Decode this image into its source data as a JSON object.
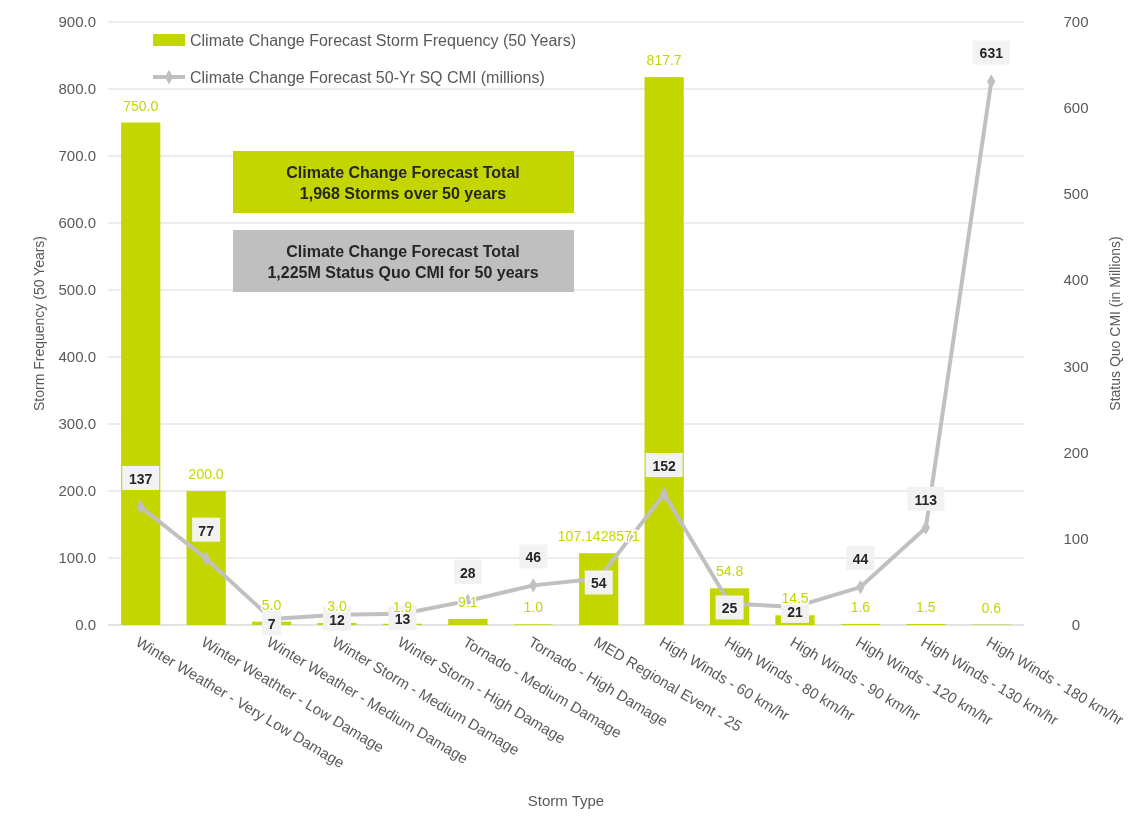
{
  "chart_data": {
    "type": "bar",
    "xlabel": "Storm Type",
    "ylabel": "Storm Frequency (50 Years)",
    "y2label": "Status Quo CMI (in Millions)",
    "categories": [
      "Winter Weather - Very Low Damage",
      "Winter Weathter - Low Damage",
      "Winter Weather - Medium Damage",
      "Winter Storm - Medium Damage",
      "Winter Storm - High Damage",
      "Tornado - Medium Damage",
      "Tornado - High Damage",
      "MED Regional Event - 25",
      "High Winds - 60 km/hr",
      "High Winds - 80 km/hr",
      "High Winds - 90 km/hr",
      "High Winds - 120 km/hr",
      "High Winds - 130 km/hr",
      "High Winds - 180 km/hr"
    ],
    "series": [
      {
        "name": "Climate Change Forecast Storm Frequency (50 Years)",
        "color": "#c4d600",
        "values": [
          750.0,
          200.0,
          5.0,
          3.0,
          1.9,
          9.1,
          1.0,
          107.1428571,
          817.7,
          54.8,
          14.5,
          1.6,
          1.5,
          0.6
        ],
        "value_labels": [
          "750.0",
          "200.0",
          "5.0",
          "3.0",
          "1.9",
          "9.1",
          "1.0",
          "107.1428571",
          "817.7",
          "54.8",
          "14.5",
          "1.6",
          "1.5",
          "0.6"
        ]
      },
      {
        "name": "Climate Change Forecast 50-Yr SQ CMI (millions)",
        "type": "line",
        "axis": "y2",
        "color": "#c0c0c0",
        "marker": "diamond",
        "values": [
          137,
          77,
          7,
          12,
          13,
          28,
          46,
          54,
          152,
          25,
          21,
          44,
          113,
          631
        ],
        "value_labels": [
          "137",
          "77",
          "7",
          "12",
          "13",
          "28",
          "46",
          "54",
          "152",
          "25",
          "21",
          "44",
          "113",
          "631"
        ]
      }
    ],
    "ylim": [
      0,
      900
    ],
    "yticks": [
      {
        "value": 0,
        "label": "0.0"
      },
      {
        "value": 100,
        "label": "100.0"
      },
      {
        "value": 200,
        "label": "200.0"
      },
      {
        "value": 300,
        "label": "300.0"
      },
      {
        "value": 400,
        "label": "400.0"
      },
      {
        "value": 500,
        "label": "500.0"
      },
      {
        "value": 600,
        "label": "600.0"
      },
      {
        "value": 700,
        "label": "700.0"
      },
      {
        "value": 800,
        "label": "800.0"
      },
      {
        "value": 900,
        "label": "900.0"
      }
    ],
    "y2lim": [
      0,
      700
    ],
    "y2ticks": [
      0,
      100,
      200,
      300,
      400,
      500,
      600,
      700
    ],
    "grid": "y",
    "legend": "top left",
    "annotations": [
      "Climate Change Forecast Total\n1,968 Storms over 50 years",
      "Climate Change Forecast Total\n1,225M Status Quo CMI for 50 years"
    ]
  }
}
